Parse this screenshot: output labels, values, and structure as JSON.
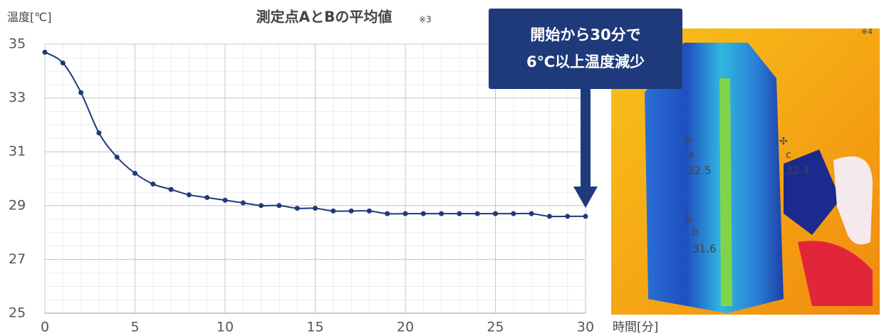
{
  "chart_data": {
    "type": "line",
    "title": "測定点AとBの平均値",
    "note": "※3",
    "y_label": "温度[℃]",
    "x_label": "時間[分]",
    "annotation": [
      "開始から30分で",
      "6℃以上温度減少"
    ],
    "x": [
      0,
      1,
      2,
      3,
      4,
      5,
      6,
      7,
      8,
      9,
      10,
      11,
      12,
      13,
      14,
      15,
      16,
      17,
      18,
      19,
      20,
      21,
      22,
      23,
      24,
      25,
      26,
      27,
      28,
      29,
      30
    ],
    "series": [
      {
        "color": "#1f3a7a",
        "values": [
          34.7,
          34.3,
          33.2,
          31.7,
          30.8,
          30.2,
          29.8,
          29.6,
          29.4,
          29.3,
          29.2,
          29.1,
          29.0,
          29.0,
          28.9,
          28.9,
          28.8,
          28.8,
          28.8,
          28.7,
          28.7,
          28.7,
          28.7,
          28.7,
          28.7,
          28.7,
          28.7,
          28.7,
          28.6,
          28.6,
          28.6
        ]
      }
    ],
    "xlim": [
      0,
      30
    ],
    "xticks": [
      0,
      5,
      10,
      15,
      20,
      25,
      30
    ],
    "ylim": [
      25,
      35
    ],
    "yticks": [
      25,
      27,
      29,
      31,
      33,
      35
    ],
    "grid": true
  },
  "thermal_image": {
    "note": "※4",
    "points": [
      {
        "label": "a",
        "value": "32.5"
      },
      {
        "label": "b",
        "value": "31.6"
      },
      {
        "label": "c",
        "value": "32.4"
      }
    ]
  }
}
